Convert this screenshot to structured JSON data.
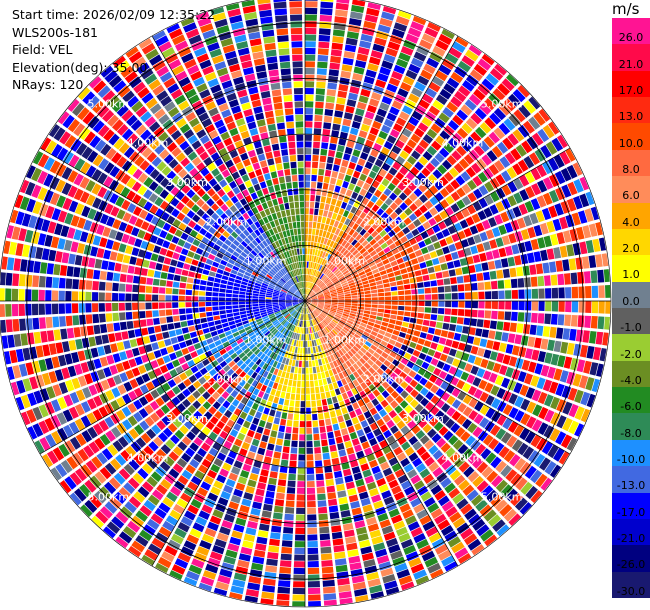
{
  "header": {
    "start_time": "Start time: 2026/02/09 12:35:22",
    "instrument": "WLS200s-181",
    "field": "Field: VEL",
    "elevation": "Elevation(deg): 35.00",
    "nrays": "NRays: 120"
  },
  "colorbar": {
    "unit": "m/s",
    "ticks": [
      "26.0",
      "21.0",
      "17.0",
      "13.0",
      "10.0",
      "8.0",
      "6.0",
      "4.0",
      "2.0",
      "1.0",
      "0.0",
      "-1.0",
      "-2.0",
      "-4.0",
      "-6.0",
      "-8.0",
      "-10.0",
      "-13.0",
      "-17.0",
      "-21.0",
      "-26.0",
      "-30.0"
    ],
    "colors": [
      "#ff1493",
      "#ff0a4a",
      "#ff0000",
      "#ff2a10",
      "#ff4a00",
      "#ff6a40",
      "#ff8c5a",
      "#ffa500",
      "#ffd700",
      "#ffff00",
      "#708090",
      "#606060",
      "#9acd32",
      "#6b8e23",
      "#228b22",
      "#2e8b57",
      "#1e90ff",
      "#4169e1",
      "#0000ff",
      "#0000cd",
      "#000080",
      "#191970"
    ]
  },
  "range_rings": {
    "labels": [
      "1.00km",
      "2.00km",
      "3.00km",
      "4.00km",
      "5.00km"
    ]
  },
  "chart_data": {
    "type": "heatmap",
    "subtype": "ppi-polar",
    "field": "VEL",
    "unit": "m/s",
    "nrays": 120,
    "elevation_deg": 35.0,
    "range_km": [
      0,
      5.5
    ],
    "range_rings_km": [
      1,
      2,
      3,
      4,
      5
    ],
    "value_range": [
      -30,
      30
    ],
    "clean_radius_km": 1.5,
    "transition_radius_km": 2.4,
    "sectors": [
      {
        "az_from": 0,
        "az_to": 30,
        "typical_value": 3.5
      },
      {
        "az_from": 30,
        "az_to": 70,
        "typical_value": 7.5
      },
      {
        "az_from": 70,
        "az_to": 110,
        "typical_value": 9.5
      },
      {
        "az_from": 110,
        "az_to": 160,
        "typical_value": 6.5
      },
      {
        "az_from": 160,
        "az_to": 200,
        "typical_value": 0.5
      },
      {
        "az_from": 200,
        "az_to": 250,
        "typical_value": -7.5
      },
      {
        "az_from": 250,
        "az_to": 290,
        "typical_value": -15.0
      },
      {
        "az_from": 290,
        "az_to": 330,
        "typical_value": -11.0
      },
      {
        "az_from": 330,
        "az_to": 360,
        "typical_value": -3.0
      }
    ],
    "outer_region": "noise (random values across full range)"
  }
}
